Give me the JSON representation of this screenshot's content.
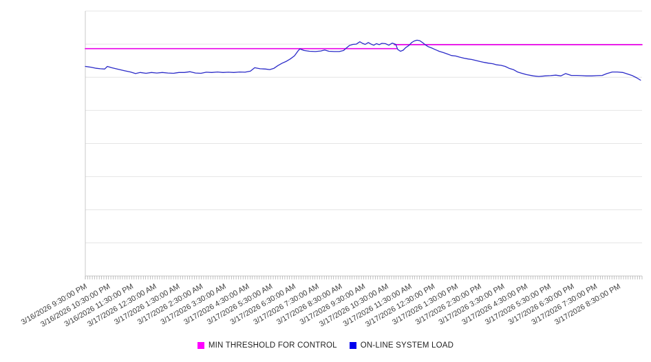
{
  "legend": {
    "items": [
      {
        "label": "MIN THRESHOLD FOR CONTROL",
        "color": "#ff00ff"
      },
      {
        "label": "ON-LINE SYSTEM LOAD",
        "color": "#0000ee"
      }
    ]
  },
  "chart_data": {
    "type": "line",
    "title": "",
    "xlabel": "",
    "ylabel": "",
    "y_axis_labeled": false,
    "ylim": [
      0,
      100
    ],
    "y_units": "percent of plot height (no y-axis labels shown)",
    "grid": {
      "horizontal": true,
      "divisions": 8
    },
    "legend_position": "bottom-center",
    "x_unit": "minutes since 3/16/2026 9:30:00 PM",
    "x_range_minutes": [
      0,
      1440
    ],
    "x_tick_label_interval_minutes": 60,
    "minor_tick_interval_minutes": 6,
    "x_tick_labels": [
      "3/16/2026 9:30:00 PM",
      "3/16/2026 10:30:00 PM",
      "3/16/2026 11:30:00 PM",
      "3/17/2026 12:30:00 AM",
      "3/17/2026 1:30:00 AM",
      "3/17/2026 2:30:00 AM",
      "3/17/2026 3:30:00 AM",
      "3/17/2026 4:30:00 AM",
      "3/17/2026 5:30:00 AM",
      "3/17/2026 6:30:00 AM",
      "3/17/2026 7:30:00 AM",
      "3/17/2026 8:30:00 AM",
      "3/17/2026 9:30:00 AM",
      "3/17/2026 10:30:00 AM",
      "3/17/2026 11:30:00 AM",
      "3/17/2026 12:30:00 PM",
      "3/17/2026 1:30:00 PM",
      "3/17/2026 2:30:00 PM",
      "3/17/2026 3:30:00 PM",
      "3/17/2026 4:30:00 PM",
      "3/17/2026 5:30:00 PM",
      "3/17/2026 6:30:00 PM",
      "3/17/2026 7:30:00 PM",
      "3/17/2026 8:30:00 PM"
    ],
    "series": [
      {
        "name": "MIN THRESHOLD FOR CONTROL",
        "color": "#e800e8",
        "width": 1.7,
        "segments": [
          [
            [
              0,
              85.8
            ],
            [
              805,
              85.8
            ]
          ],
          [
            [
              799,
              87.3
            ],
            [
              1440,
              87.3
            ]
          ]
        ]
      },
      {
        "name": "ON-LINE SYSTEM LOAD",
        "color": "#2a2ac8",
        "width": 1.3,
        "points": [
          [
            0,
            79.1
          ],
          [
            14,
            78.8
          ],
          [
            28,
            78.4
          ],
          [
            39,
            78.2
          ],
          [
            50,
            78.1
          ],
          [
            57,
            79.1
          ],
          [
            68,
            78.6
          ],
          [
            82,
            78.1
          ],
          [
            100,
            77.5
          ],
          [
            117,
            77.0
          ],
          [
            130,
            76.4
          ],
          [
            142,
            76.8
          ],
          [
            157,
            76.5
          ],
          [
            171,
            76.8
          ],
          [
            185,
            76.6
          ],
          [
            199,
            76.8
          ],
          [
            214,
            76.6
          ],
          [
            228,
            76.5
          ],
          [
            242,
            76.8
          ],
          [
            256,
            76.8
          ],
          [
            271,
            77.1
          ],
          [
            285,
            76.6
          ],
          [
            299,
            76.5
          ],
          [
            313,
            76.9
          ],
          [
            327,
            76.8
          ],
          [
            342,
            77.0
          ],
          [
            356,
            76.8
          ],
          [
            370,
            76.9
          ],
          [
            384,
            76.8
          ],
          [
            399,
            77.0
          ],
          [
            413,
            76.9
          ],
          [
            427,
            77.3
          ],
          [
            438,
            78.6
          ],
          [
            452,
            78.2
          ],
          [
            466,
            78.1
          ],
          [
            477,
            77.9
          ],
          [
            488,
            78.4
          ],
          [
            498,
            79.4
          ],
          [
            509,
            80.3
          ],
          [
            520,
            81.0
          ],
          [
            530,
            81.9
          ],
          [
            541,
            83.1
          ],
          [
            550,
            84.9
          ],
          [
            555,
            85.7
          ],
          [
            566,
            85.1
          ],
          [
            580,
            84.8
          ],
          [
            595,
            84.7
          ],
          [
            609,
            84.9
          ],
          [
            619,
            85.3
          ],
          [
            630,
            84.8
          ],
          [
            644,
            84.7
          ],
          [
            657,
            84.7
          ],
          [
            668,
            85.1
          ],
          [
            675,
            86.0
          ],
          [
            683,
            87.0
          ],
          [
            692,
            87.4
          ],
          [
            701,
            87.5
          ],
          [
            710,
            88.4
          ],
          [
            717,
            87.8
          ],
          [
            724,
            87.4
          ],
          [
            732,
            88.1
          ],
          [
            739,
            87.5
          ],
          [
            746,
            87.1
          ],
          [
            753,
            87.7
          ],
          [
            760,
            87.3
          ],
          [
            767,
            87.8
          ],
          [
            776,
            87.7
          ],
          [
            785,
            87.1
          ],
          [
            794,
            87.9
          ],
          [
            803,
            87.4
          ],
          [
            808,
            85.5
          ],
          [
            815,
            84.8
          ],
          [
            822,
            85.2
          ],
          [
            829,
            86.2
          ],
          [
            837,
            87.0
          ],
          [
            844,
            88.1
          ],
          [
            851,
            88.7
          ],
          [
            858,
            89.0
          ],
          [
            865,
            88.8
          ],
          [
            872,
            88.1
          ],
          [
            879,
            87.3
          ],
          [
            886,
            86.6
          ],
          [
            895,
            86.1
          ],
          [
            904,
            85.5
          ],
          [
            915,
            84.8
          ],
          [
            926,
            84.3
          ],
          [
            936,
            83.8
          ],
          [
            947,
            83.2
          ],
          [
            958,
            83.0
          ],
          [
            968,
            82.6
          ],
          [
            979,
            82.2
          ],
          [
            990,
            81.9
          ],
          [
            1000,
            81.7
          ],
          [
            1011,
            81.3
          ],
          [
            1022,
            80.9
          ],
          [
            1032,
            80.6
          ],
          [
            1043,
            80.3
          ],
          [
            1054,
            80.1
          ],
          [
            1064,
            79.7
          ],
          [
            1075,
            79.5
          ],
          [
            1086,
            79.1
          ],
          [
            1096,
            78.4
          ],
          [
            1107,
            77.9
          ],
          [
            1118,
            77.0
          ],
          [
            1129,
            76.5
          ],
          [
            1141,
            76.0
          ],
          [
            1159,
            75.5
          ],
          [
            1173,
            75.3
          ],
          [
            1189,
            75.5
          ],
          [
            1203,
            75.6
          ],
          [
            1217,
            75.8
          ],
          [
            1230,
            75.5
          ],
          [
            1242,
            76.4
          ],
          [
            1257,
            75.7
          ],
          [
            1271,
            75.7
          ],
          [
            1283,
            75.6
          ],
          [
            1296,
            75.5
          ],
          [
            1310,
            75.5
          ],
          [
            1324,
            75.6
          ],
          [
            1337,
            75.7
          ],
          [
            1349,
            76.4
          ],
          [
            1363,
            77.0
          ],
          [
            1376,
            77.0
          ],
          [
            1390,
            76.8
          ],
          [
            1403,
            76.2
          ],
          [
            1415,
            75.6
          ],
          [
            1426,
            74.8
          ],
          [
            1436,
            73.9
          ]
        ]
      }
    ]
  }
}
